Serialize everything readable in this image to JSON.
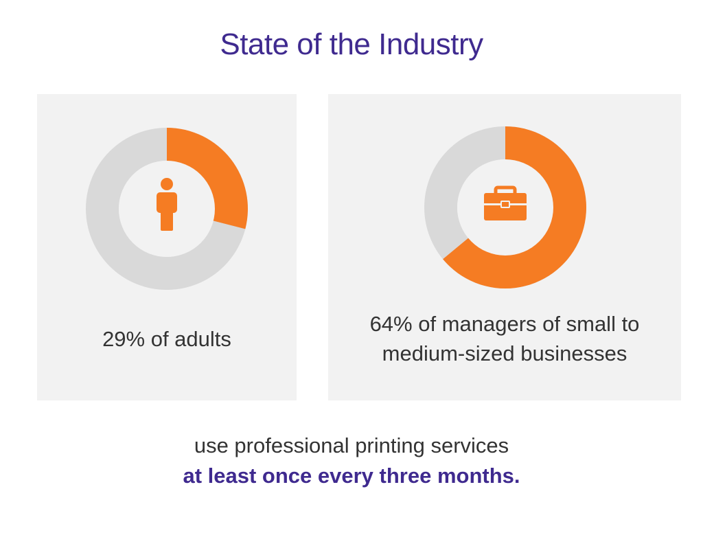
{
  "title": "State of the Industry",
  "colors": {
    "accent": "#f57c23",
    "track": "#d9d9d9",
    "inner": "#f2f2f2",
    "title": "#3f2a8f",
    "text": "#333333"
  },
  "chart_data": [
    {
      "type": "pie",
      "variant": "donut",
      "values": [
        29,
        71
      ],
      "unit": "%",
      "icon": "person-icon",
      "label": "29% of adults"
    },
    {
      "type": "pie",
      "variant": "donut",
      "values": [
        64,
        36
      ],
      "unit": "%",
      "icon": "briefcase-icon",
      "label_lines": [
        "64% of managers of small to",
        "medium-sized businesses"
      ]
    }
  ],
  "footer": {
    "line1": "use professional printing services",
    "line2": "at least once every three months."
  }
}
